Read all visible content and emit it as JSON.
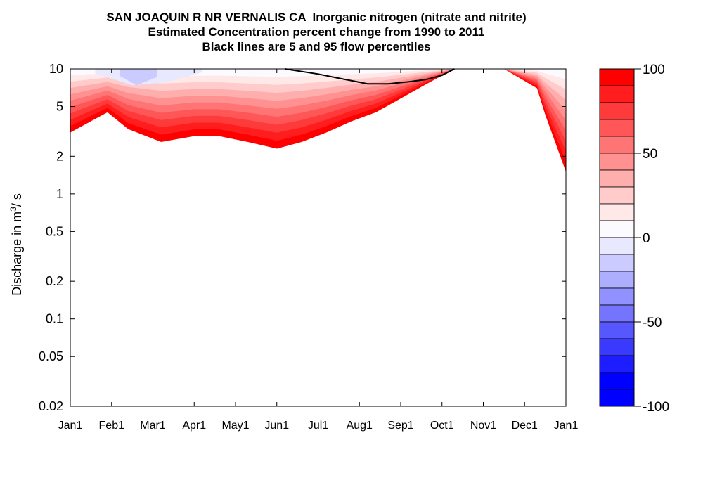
{
  "chart_data": {
    "type": "heatmap",
    "title_lines": [
      "SAN JOAQUIN R NR VERNALIS CA  Inorganic nitrogen (nitrate and nitrite)",
      "Estimated Concentration percent change from 1990 to 2011",
      "Black lines are 5 and 95 flow percentiles"
    ],
    "xlabel": "",
    "ylabel_text": "Discharge in m",
    "ylabel_superscript": "3",
    "ylabel_suffix": "/ s",
    "y_scale": "log",
    "ylim": [
      0.02,
      10
    ],
    "y_ticks": [
      10,
      5,
      2,
      1,
      0.5,
      0.2,
      0.1,
      0.05,
      0.02
    ],
    "y_tick_labels": [
      "10",
      "5",
      "2",
      "1",
      "0.5",
      "0.2",
      "0.1",
      "0.05",
      "0.02"
    ],
    "x_range_months": [
      0,
      12
    ],
    "x_tick_labels": [
      "Jan1",
      "Feb1",
      "Mar1",
      "Apr1",
      "May1",
      "Jun1",
      "Jul1",
      "Aug1",
      "Sep1",
      "Oct1",
      "Nov1",
      "Dec1",
      "Jan1"
    ],
    "grid": false,
    "colorbar": {
      "min": -100,
      "max": 100,
      "step": 10,
      "tick_labels": [
        "100",
        "50",
        "0",
        "-50",
        "-100"
      ],
      "tick_values": [
        100,
        50,
        0,
        -50,
        -100
      ],
      "colors_top_to_bottom": [
        "#ff0000",
        "#ff1d1d",
        "#ff3a3a",
        "#ff5757",
        "#ff7474",
        "#ff9191",
        "#ffaeae",
        "#ffcbcb",
        "#ffe8e8",
        "#fafaff",
        "#e8e8ff",
        "#cbcbff",
        "#aeaeff",
        "#9191ff",
        "#7474ff",
        "#5757ff",
        "#3a3aff",
        "#1d1dff",
        "#0000ff",
        "#0000ff"
      ]
    },
    "filled_region": {
      "description_months_x": [
        0,
        0.9,
        1.4,
        2.2,
        3.0,
        3.6,
        4.3,
        5.0,
        5.6,
        6.2,
        6.8,
        7.4,
        8.0,
        8.6,
        9.3,
        10.5,
        11.3,
        11.5,
        12.0
      ],
      "lower_edge_discharge": [
        3.1,
        4.5,
        3.3,
        2.6,
        2.9,
        2.9,
        2.6,
        2.3,
        2.6,
        3.1,
        3.8,
        4.5,
        5.8,
        7.5,
        10,
        10,
        7.0,
        4.3,
        1.5
      ],
      "upper_edge_discharge": 10
    },
    "blue_patches": [
      {
        "x_months": [
          0.6,
          1.5,
          2.3,
          3.2
        ],
        "discharge": [
          9.2,
          7.4,
          7.8,
          9.4
        ]
      },
      {
        "x_months": [
          1.2,
          1.6,
          2.1
        ],
        "discharge": [
          8.8,
          7.4,
          8.6
        ]
      }
    ],
    "flow_percentile_line": {
      "x_months": [
        5.2,
        6.0,
        6.6,
        7.2,
        7.7,
        8.2,
        8.6,
        9.0,
        9.3
      ],
      "discharge": [
        10,
        9.1,
        8.3,
        7.6,
        7.6,
        7.9,
        8.2,
        8.9,
        10
      ]
    }
  }
}
